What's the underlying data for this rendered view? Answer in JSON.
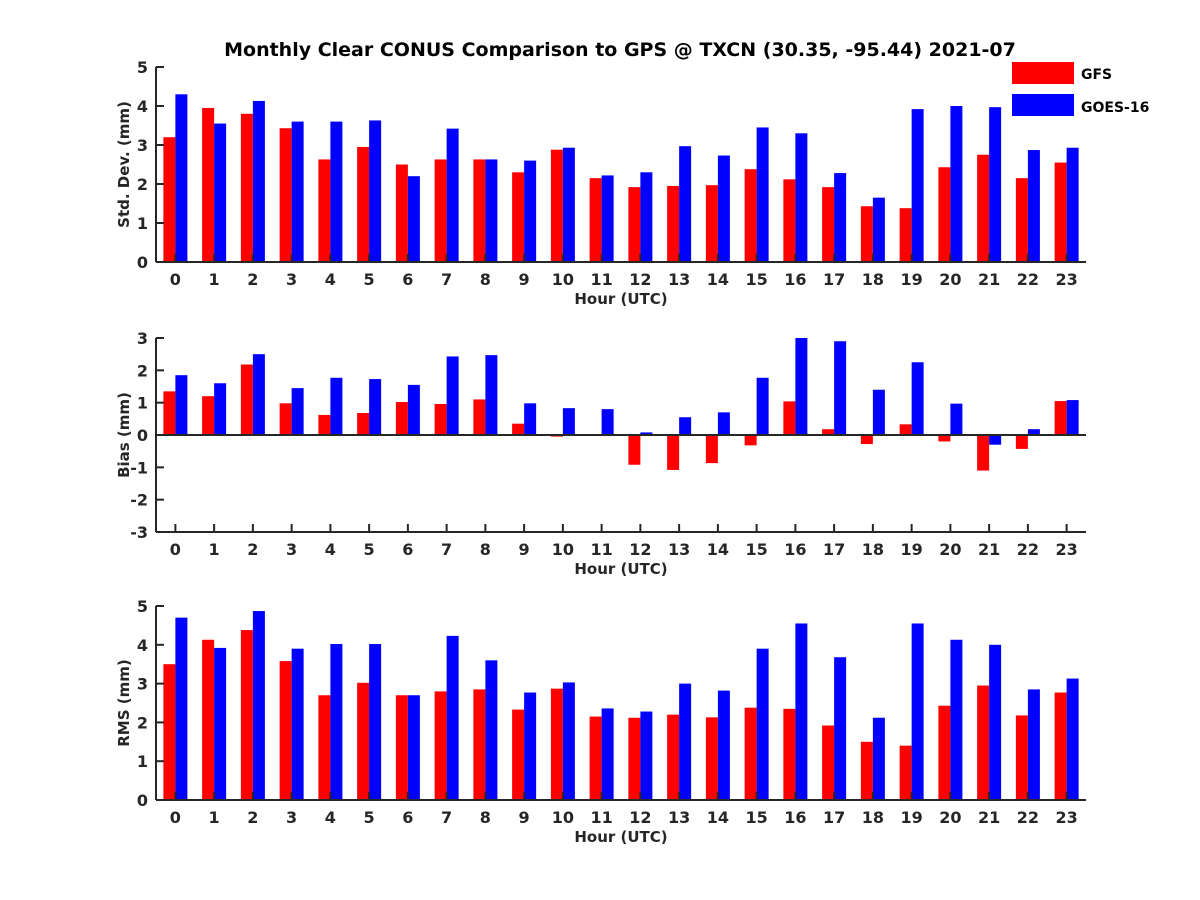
{
  "title": "Monthly Clear CONUS Comparison to GPS @ TXCN (30.35, -95.44) 2021-07",
  "legend": {
    "placement": "top-right",
    "entries": [
      {
        "label": "GFS",
        "color": "#ff0000"
      },
      {
        "label": "GOES-16",
        "color": "#0000ff"
      }
    ]
  },
  "chart_data": [
    {
      "type": "bar",
      "xlabel": "Hour (UTC)",
      "ylabel": "Std. Dev. (mm)",
      "ylim": [
        0,
        5
      ],
      "yticks": [
        0,
        1,
        2,
        3,
        4,
        5
      ],
      "categories": [
        "0",
        "1",
        "2",
        "3",
        "4",
        "5",
        "6",
        "7",
        "8",
        "9",
        "10",
        "11",
        "12",
        "13",
        "14",
        "15",
        "16",
        "17",
        "18",
        "19",
        "20",
        "21",
        "22",
        "23"
      ],
      "series": [
        {
          "name": "GFS",
          "color": "#ff0000",
          "values": [
            3.2,
            3.95,
            3.8,
            3.43,
            2.63,
            2.95,
            2.5,
            2.63,
            2.63,
            2.3,
            2.88,
            2.15,
            1.92,
            1.95,
            1.97,
            2.38,
            2.12,
            1.92,
            1.43,
            1.38,
            2.43,
            2.75,
            2.15,
            2.55
          ]
        },
        {
          "name": "GOES-16",
          "color": "#0000ff",
          "values": [
            4.3,
            3.55,
            4.13,
            3.6,
            3.6,
            3.63,
            2.2,
            3.42,
            2.63,
            2.6,
            2.93,
            2.22,
            2.3,
            2.97,
            2.73,
            3.45,
            3.3,
            2.28,
            1.65,
            3.92,
            4.0,
            3.97,
            2.87,
            2.93
          ]
        }
      ]
    },
    {
      "type": "bar",
      "xlabel": "Hour (UTC)",
      "ylabel": "Bias (mm)",
      "ylim": [
        -3,
        3
      ],
      "yticks": [
        -3,
        -2,
        -1,
        0,
        1,
        2,
        3
      ],
      "categories": [
        "0",
        "1",
        "2",
        "3",
        "4",
        "5",
        "6",
        "7",
        "8",
        "9",
        "10",
        "11",
        "12",
        "13",
        "14",
        "15",
        "16",
        "17",
        "18",
        "19",
        "20",
        "21",
        "22",
        "23"
      ],
      "series": [
        {
          "name": "GFS",
          "color": "#ff0000",
          "values": [
            1.35,
            1.2,
            2.18,
            0.98,
            0.62,
            0.68,
            1.02,
            0.96,
            1.1,
            0.35,
            -0.05,
            0.02,
            -0.92,
            -1.08,
            -0.87,
            -0.32,
            1.04,
            0.18,
            -0.28,
            0.33,
            -0.2,
            -1.1,
            -0.43,
            1.05
          ]
        },
        {
          "name": "GOES-16",
          "color": "#0000ff",
          "values": [
            1.85,
            1.6,
            2.5,
            1.45,
            1.77,
            1.73,
            1.55,
            2.43,
            2.47,
            0.98,
            0.83,
            0.8,
            0.08,
            0.55,
            0.7,
            1.77,
            3.0,
            2.9,
            1.4,
            2.25,
            0.97,
            -0.3,
            0.18,
            1.08
          ]
        }
      ]
    },
    {
      "type": "bar",
      "xlabel": "Hour (UTC)",
      "ylabel": "RMS (mm)",
      "ylim": [
        0,
        5
      ],
      "yticks": [
        0,
        1,
        2,
        3,
        4,
        5
      ],
      "categories": [
        "0",
        "1",
        "2",
        "3",
        "4",
        "5",
        "6",
        "7",
        "8",
        "9",
        "10",
        "11",
        "12",
        "13",
        "14",
        "15",
        "16",
        "17",
        "18",
        "19",
        "20",
        "21",
        "22",
        "23"
      ],
      "series": [
        {
          "name": "GFS",
          "color": "#ff0000",
          "values": [
            3.5,
            4.13,
            4.38,
            3.58,
            2.7,
            3.02,
            2.7,
            2.8,
            2.85,
            2.33,
            2.87,
            2.15,
            2.12,
            2.2,
            2.13,
            2.38,
            2.35,
            1.92,
            1.5,
            1.4,
            2.43,
            2.95,
            2.18,
            2.77
          ]
        },
        {
          "name": "GOES-16",
          "color": "#0000ff",
          "values": [
            4.7,
            3.92,
            4.87,
            3.9,
            4.02,
            4.02,
            2.7,
            4.23,
            3.6,
            2.77,
            3.03,
            2.36,
            2.28,
            3.0,
            2.82,
            3.9,
            4.55,
            3.68,
            2.12,
            4.55,
            4.13,
            4.0,
            2.85,
            3.13
          ]
        }
      ]
    }
  ]
}
